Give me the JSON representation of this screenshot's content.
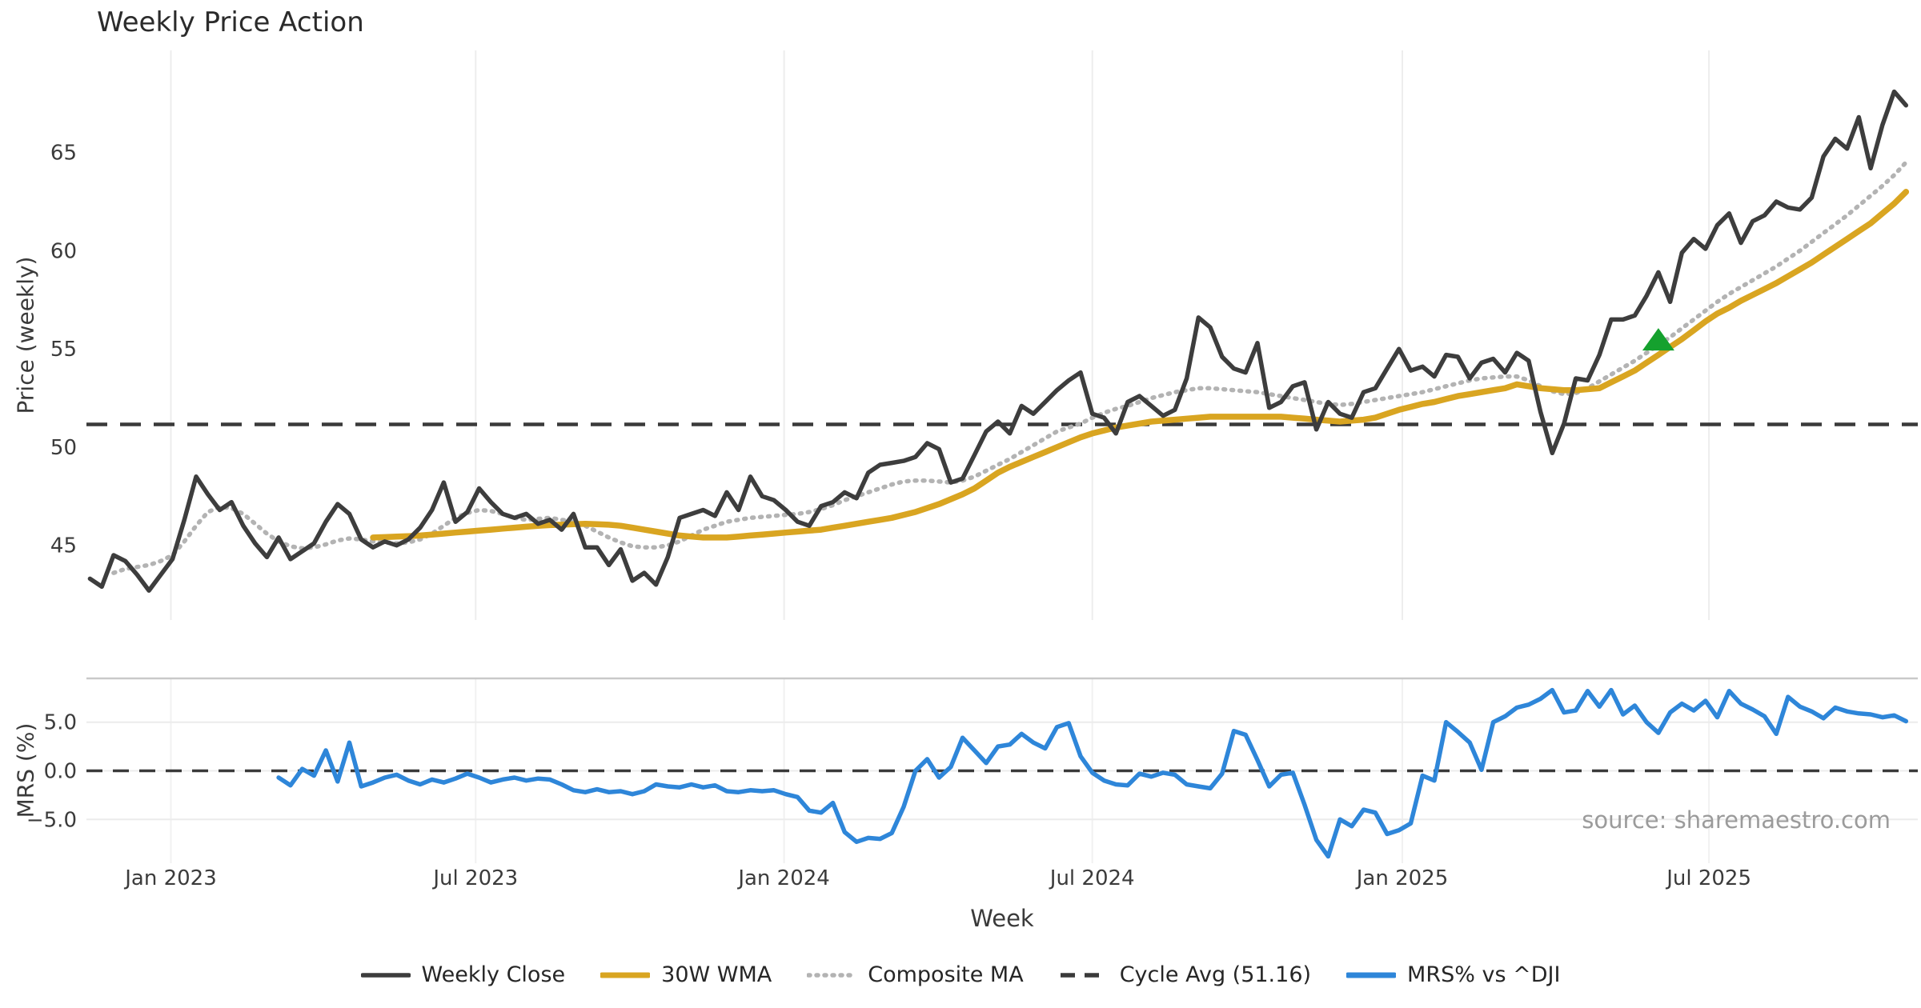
{
  "title": "Weekly Price Action",
  "source_note": "source: sharemaestro.com",
  "legend": {
    "items": [
      {
        "label": "Weekly Close",
        "color": "#3d3d3d",
        "style": "solid"
      },
      {
        "label": "30W WMA",
        "color": "#d9a521",
        "style": "solid"
      },
      {
        "label": "Composite MA",
        "color": "#b3b3b3",
        "style": "dotted"
      },
      {
        "label": "Cycle Avg (51.16)",
        "color": "#3a3a3a",
        "style": "dashed"
      },
      {
        "label": "MRS% vs ^DJI",
        "color": "#2e86d9",
        "style": "solid"
      }
    ]
  },
  "chart_data": {
    "type": "line",
    "x_start": "2022-11-14",
    "x_step_days": 7,
    "grid": "vertical-light",
    "legend_position": "bottom-center",
    "x_axis": {
      "label": "Week",
      "ticks": [
        {
          "label": "Jan 2023",
          "week_index": 6.86
        },
        {
          "label": "Jul 2023",
          "week_index": 32.71
        },
        {
          "label": "Jan 2024",
          "week_index": 58.86
        },
        {
          "label": "Jul 2024",
          "week_index": 85.0
        },
        {
          "label": "Jan 2025",
          "week_index": 111.29
        },
        {
          "label": "Jul 2025",
          "week_index": 137.29
        }
      ]
    },
    "panels": [
      {
        "id": "price",
        "ylabel": "Price (weekly)",
        "ylim": [
          41.2,
          70.2
        ],
        "yticks": [
          {
            "label": "45",
            "value": 45
          },
          {
            "label": "50",
            "value": 50
          },
          {
            "label": "55",
            "value": 55
          },
          {
            "label": "60",
            "value": 60
          },
          {
            "label": "65",
            "value": 65
          }
        ],
        "series": [
          {
            "name": "Weekly Close",
            "color": "#3d3d3d",
            "style": "solid",
            "width": 5.5,
            "start_index": 0,
            "values": [
              43.3,
              42.9,
              44.5,
              44.2,
              43.5,
              42.7,
              43.5,
              44.3,
              46.3,
              48.5,
              47.6,
              46.8,
              47.2,
              46.0,
              45.1,
              44.4,
              45.4,
              44.3,
              44.7,
              45.1,
              46.2,
              47.1,
              46.6,
              45.3,
              44.9,
              45.2,
              45.0,
              45.3,
              45.9,
              46.8,
              48.2,
              46.2,
              46.7,
              47.9,
              47.2,
              46.6,
              46.4,
              46.6,
              46.1,
              46.3,
              45.8,
              46.6,
              44.9,
              44.9,
              44.0,
              44.8,
              43.2,
              43.6,
              43.0,
              44.4,
              46.4,
              46.6,
              46.8,
              46.5,
              47.7,
              46.8,
              48.5,
              47.5,
              47.3,
              46.8,
              46.2,
              46.0,
              47.0,
              47.2,
              47.7,
              47.4,
              48.7,
              49.1,
              49.2,
              49.3,
              49.5,
              50.2,
              49.9,
              48.2,
              48.4,
              49.6,
              50.8,
              51.3,
              50.7,
              52.1,
              51.7,
              52.3,
              52.9,
              53.4,
              53.8,
              51.7,
              51.5,
              50.7,
              52.3,
              52.6,
              52.1,
              51.6,
              51.9,
              53.5,
              56.6,
              56.1,
              54.6,
              54.0,
              53.8,
              55.3,
              52.0,
              52.3,
              53.1,
              53.3,
              50.9,
              52.3,
              51.7,
              51.5,
              52.8,
              53.0,
              54.0,
              55.0,
              53.9,
              54.1,
              53.6,
              54.7,
              54.6,
              53.5,
              54.3,
              54.5,
              53.8,
              54.8,
              54.4,
              51.8,
              49.7,
              51.2,
              53.5,
              53.4,
              54.7,
              56.5,
              56.5,
              56.7,
              57.7,
              58.9,
              57.4,
              59.9,
              60.6,
              60.1,
              61.3,
              61.9,
              60.4,
              61.5,
              61.8,
              62.5,
              62.2,
              62.1,
              62.7,
              64.8,
              65.7,
              65.2,
              66.8,
              64.2,
              66.4,
              68.1,
              67.4
            ]
          },
          {
            "name": "30W WMA",
            "color": "#d9a521",
            "style": "solid",
            "width": 7.5,
            "start_index": 24,
            "values": [
              45.4,
              45.42,
              45.45,
              45.47,
              45.5,
              45.55,
              45.6,
              45.65,
              45.7,
              45.75,
              45.8,
              45.85,
              45.9,
              45.95,
              46.0,
              46.03,
              46.05,
              46.08,
              46.1,
              46.08,
              46.05,
              46.0,
              45.9,
              45.8,
              45.7,
              45.6,
              45.5,
              45.45,
              45.4,
              45.4,
              45.4,
              45.45,
              45.5,
              45.55,
              45.6,
              45.65,
              45.7,
              45.75,
              45.8,
              45.9,
              46.0,
              46.1,
              46.2,
              46.3,
              46.4,
              46.55,
              46.7,
              46.9,
              47.1,
              47.35,
              47.6,
              47.9,
              48.3,
              48.7,
              49.0,
              49.25,
              49.5,
              49.75,
              50.0,
              50.25,
              50.5,
              50.7,
              50.85,
              51.0,
              51.1,
              51.2,
              51.3,
              51.35,
              51.4,
              51.45,
              51.5,
              51.55,
              51.55,
              51.55,
              51.55,
              51.55,
              51.55,
              51.55,
              51.5,
              51.45,
              51.4,
              51.35,
              51.3,
              51.35,
              51.4,
              51.5,
              51.7,
              51.9,
              52.05,
              52.2,
              52.3,
              52.45,
              52.6,
              52.7,
              52.8,
              52.9,
              53.0,
              53.2,
              53.1,
              53.0,
              52.95,
              52.9,
              52.9,
              52.95,
              53.0,
              53.3,
              53.6,
              53.9,
              54.3,
              54.7,
              55.1,
              55.5,
              55.95,
              56.4,
              56.8,
              57.1,
              57.45,
              57.75,
              58.05,
              58.35,
              58.7,
              59.05,
              59.4,
              59.8,
              60.2,
              60.6,
              61.0,
              61.4,
              61.9,
              62.4,
              63.0
            ]
          },
          {
            "name": "Composite MA",
            "color": "#b3b3b3",
            "style": "dotted",
            "width": 5.5,
            "start_index": 2,
            "values": [
              43.6,
              43.8,
              43.9,
              44.0,
              44.2,
              44.5,
              45.2,
              46.0,
              46.7,
              46.95,
              46.9,
              46.6,
              46.1,
              45.6,
              45.2,
              44.95,
              44.85,
              44.9,
              45.05,
              45.25,
              45.35,
              45.3,
              45.2,
              45.15,
              45.1,
              45.15,
              45.3,
              45.6,
              46.0,
              46.4,
              46.65,
              46.8,
              46.75,
              46.6,
              46.4,
              46.3,
              46.35,
              46.4,
              46.3,
              46.2,
              46.0,
              45.7,
              45.4,
              45.15,
              44.95,
              44.9,
              44.9,
              45.0,
              45.2,
              45.5,
              45.8,
              46.0,
              46.2,
              46.3,
              46.4,
              46.45,
              46.5,
              46.55,
              46.6,
              46.7,
              46.85,
              47.05,
              47.3,
              47.5,
              47.7,
              47.9,
              48.1,
              48.25,
              48.3,
              48.3,
              48.25,
              48.2,
              48.3,
              48.5,
              48.8,
              49.1,
              49.4,
              49.75,
              50.1,
              50.45,
              50.8,
              51.0,
              51.2,
              51.5,
              51.75,
              51.95,
              52.1,
              52.3,
              52.5,
              52.65,
              52.8,
              52.9,
              53.0,
              53.0,
              52.95,
              52.9,
              52.85,
              52.8,
              52.7,
              52.6,
              52.5,
              52.4,
              52.3,
              52.2,
              52.15,
              52.2,
              52.3,
              52.4,
              52.5,
              52.6,
              52.7,
              52.8,
              52.95,
              53.1,
              53.25,
              53.4,
              53.5,
              53.55,
              53.6,
              53.6,
              53.4,
              53.1,
              52.85,
              52.7,
              52.75,
              53.0,
              53.35,
              53.7,
              54.05,
              54.4,
              54.8,
              55.2,
              55.6,
              56.05,
              56.5,
              56.95,
              57.4,
              57.8,
              58.15,
              58.5,
              58.85,
              59.2,
              59.6,
              60.0,
              60.45,
              60.9,
              61.35,
              61.8,
              62.3,
              62.8,
              63.3,
              63.85,
              64.5
            ]
          },
          {
            "name": "Cycle Avg (51.16)",
            "type": "hline",
            "value": 51.16,
            "color": "#3a3a3a",
            "style": "dashed",
            "width": 4.5
          }
        ],
        "markers": [
          {
            "name": "signal-marker",
            "shape": "triangle-up",
            "color": "#15a12e",
            "week_index": 133,
            "value": 55.45
          }
        ]
      },
      {
        "id": "mrs",
        "ylabel": "MRS (%)",
        "ylim": [
          -9.5,
          9.5
        ],
        "yticks": [
          {
            "label": "5.0",
            "value": 5
          },
          {
            "label": "0.0",
            "value": 0
          },
          {
            "label": "−5.0",
            "value": -5
          }
        ],
        "zero_line": {
          "value": 0,
          "color": "#3a3a3a",
          "style": "dashed",
          "width": 3.5
        },
        "series": [
          {
            "name": "MRS% vs ^DJI",
            "color": "#2e86d9",
            "style": "solid",
            "width": 5.5,
            "start_index": 16,
            "values": [
              -0.7,
              -1.5,
              0.2,
              -0.5,
              2.1,
              -1.1,
              2.9,
              -1.6,
              -1.2,
              -0.7,
              -0.4,
              -1.0,
              -1.4,
              -0.9,
              -1.2,
              -0.8,
              -0.3,
              -0.7,
              -1.2,
              -0.9,
              -0.7,
              -1.0,
              -0.8,
              -0.9,
              -1.4,
              -2.0,
              -2.2,
              -1.9,
              -2.2,
              -2.1,
              -2.4,
              -2.1,
              -1.4,
              -1.6,
              -1.7,
              -1.4,
              -1.7,
              -1.5,
              -2.1,
              -2.2,
              -2.0,
              -2.1,
              -2.0,
              -2.4,
              -2.7,
              -4.1,
              -4.3,
              -3.3,
              -6.3,
              -7.3,
              -6.9,
              -7.0,
              -6.4,
              -3.7,
              0.0,
              1.2,
              -0.7,
              0.4,
              3.4,
              2.1,
              0.8,
              2.5,
              2.7,
              3.8,
              2.9,
              2.3,
              4.5,
              4.9,
              1.5,
              -0.2,
              -1.0,
              -1.4,
              -1.5,
              -0.3,
              -0.6,
              -0.2,
              -0.4,
              -1.4,
              -1.6,
              -1.8,
              -0.3,
              4.1,
              3.7,
              1.1,
              -1.6,
              -0.4,
              -0.2,
              -3.5,
              -7.1,
              -8.8,
              -5.0,
              -5.7,
              -4.0,
              -4.3,
              -6.5,
              -6.1,
              -5.4,
              -0.5,
              -1.0,
              5.0,
              4.0,
              2.9,
              0.1,
              5.0,
              5.6,
              6.5,
              6.8,
              7.4,
              8.3,
              6.0,
              6.2,
              8.2,
              6.6,
              8.3,
              5.8,
              6.7,
              5.0,
              3.9,
              6.0,
              6.9,
              6.2,
              7.2,
              5.5,
              8.2,
              6.9,
              6.3,
              5.6,
              3.8,
              7.6,
              6.6,
              6.1,
              5.4,
              6.5,
              6.1,
              5.9,
              5.8,
              5.5,
              5.7,
              5.1
            ]
          }
        ]
      }
    ]
  }
}
